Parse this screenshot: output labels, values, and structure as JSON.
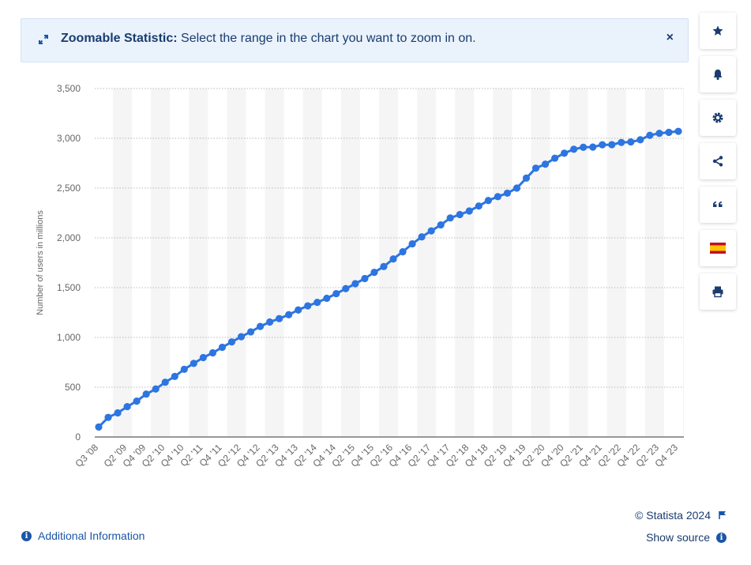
{
  "banner": {
    "title": "Zoomable Statistic:",
    "message": "Select the range in the chart you want to zoom in on.",
    "close_label": "×"
  },
  "toolbar": {
    "buttons": [
      "star-icon",
      "bell-icon",
      "gear-icon",
      "share-icon",
      "quote-icon",
      "flag-spain-icon",
      "print-icon"
    ]
  },
  "footer": {
    "additional_info": "Additional Information",
    "copyright": "© Statista 2024",
    "show_source": "Show source"
  },
  "colors": {
    "series": "#2d75e0",
    "banner_bg": "#eaf2fc",
    "link": "#1a56a8"
  },
  "chart_data": {
    "type": "line",
    "title": "",
    "xlabel": "",
    "ylabel": "Number of users in millions",
    "ylim": [
      0,
      3500
    ],
    "yticks": [
      0,
      500,
      1000,
      1500,
      2000,
      2500,
      3000,
      3500
    ],
    "ytick_labels": [
      "0",
      "500",
      "1,000",
      "1,500",
      "2,000",
      "2,500",
      "3,000",
      "3,500"
    ],
    "grid": "horizontal dotted",
    "x": [
      "Q3 '08",
      "Q4 '08",
      "Q1 '09",
      "Q2 '09",
      "Q3 '09",
      "Q4 '09",
      "Q1 '10",
      "Q2 '10",
      "Q3 '10",
      "Q4 '10",
      "Q1 '11",
      "Q2 '11",
      "Q3 '11",
      "Q4 '11",
      "Q1 '12",
      "Q2 '12",
      "Q3 '12",
      "Q4 '12",
      "Q1 '13",
      "Q2 '13",
      "Q3 '13",
      "Q4 '13",
      "Q1 '14",
      "Q2 '14",
      "Q3 '14",
      "Q4 '14",
      "Q1 '15",
      "Q2 '15",
      "Q3 '15",
      "Q4 '15",
      "Q1 '16",
      "Q2 '16",
      "Q3 '16",
      "Q4 '16",
      "Q1 '17",
      "Q2 '17",
      "Q3 '17",
      "Q4 '17",
      "Q1 '18",
      "Q2 '18",
      "Q3 '18",
      "Q4 '18",
      "Q1 '19",
      "Q2 '19",
      "Q3 '19",
      "Q4 '19",
      "Q1 '20",
      "Q2 '20",
      "Q3 '20",
      "Q4 '20",
      "Q1 '21",
      "Q2 '21",
      "Q3 '21",
      "Q4 '21",
      "Q1 '22",
      "Q2 '22",
      "Q3 '22",
      "Q4 '22",
      "Q1 '23",
      "Q2 '23",
      "Q3 '23",
      "Q4 '23"
    ],
    "x_tick_labels": [
      "Q3 '08",
      "Q2 '09",
      "Q4 '09",
      "Q2 '10",
      "Q4 '10",
      "Q2 '11",
      "Q4 '11",
      "Q2 '12",
      "Q4 '12",
      "Q2 '13",
      "Q4 '13",
      "Q2 '14",
      "Q4 '14",
      "Q2 '15",
      "Q4 '15",
      "Q2 '16",
      "Q4 '16",
      "Q2 '17",
      "Q4 '17",
      "Q2 '18",
      "Q4 '18",
      "Q2 '19",
      "Q4 '19",
      "Q2 '20",
      "Q4 '20",
      "Q2 '21",
      "Q4 '21",
      "Q2 '22",
      "Q4 '22",
      "Q2 '23",
      "Q4 '23"
    ],
    "series": [
      {
        "values": [
          100,
          197,
          242,
          305,
          360,
          431,
          482,
          550,
          608,
          680,
          739,
          798,
          845,
          901,
          955,
          1007,
          1056,
          1110,
          1155,
          1189,
          1228,
          1276,
          1317,
          1352,
          1393,
          1440,
          1490,
          1540,
          1591,
          1654,
          1712,
          1788,
          1860,
          1940,
          2010,
          2070,
          2130,
          2200,
          2234,
          2270,
          2320,
          2375,
          2414,
          2449,
          2500,
          2600,
          2700,
          2740,
          2800,
          2850,
          2890,
          2910,
          2912,
          2935,
          2936,
          2958,
          2963,
          2985,
          3030,
          3050,
          3060,
          3070
        ]
      }
    ]
  }
}
